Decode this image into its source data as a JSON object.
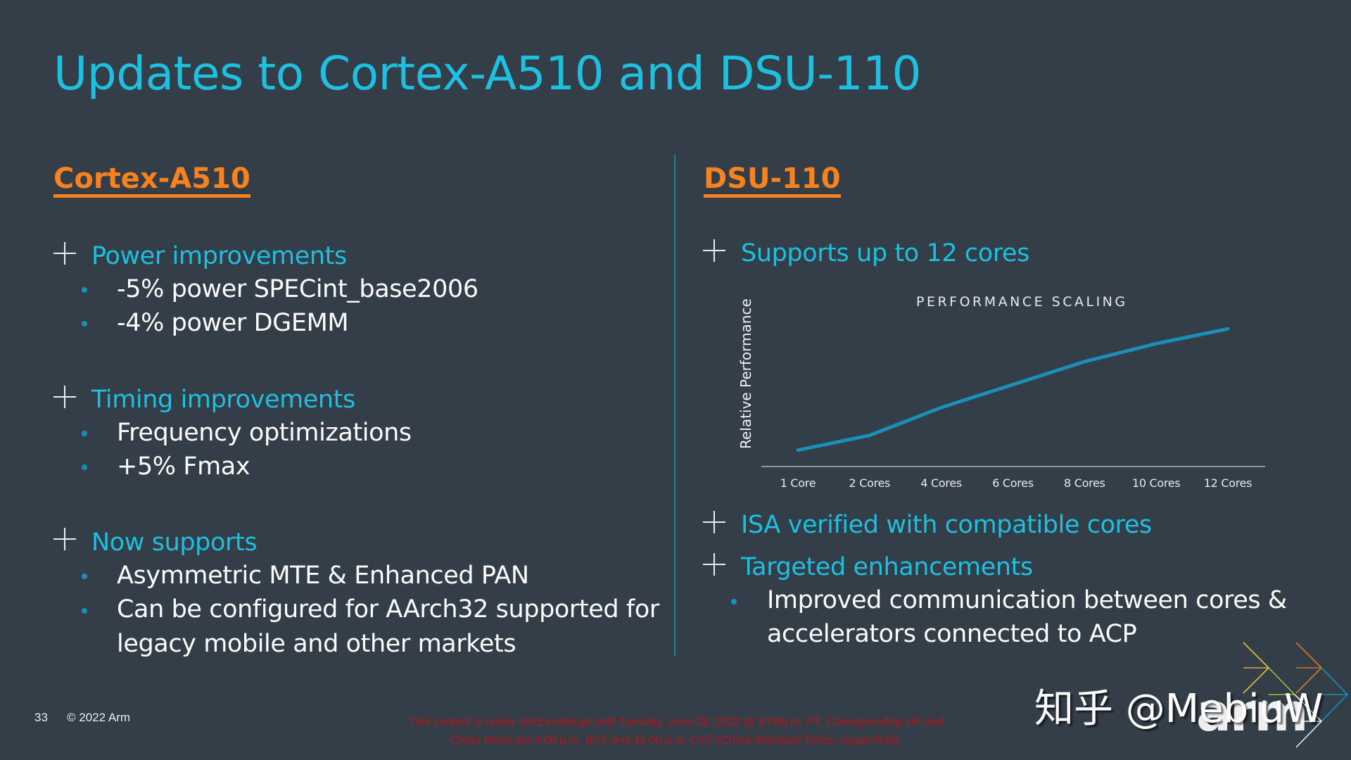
{
  "slide": {
    "title": "Updates to Cortex-A510 and DSU-110",
    "page_number": "33",
    "copyright": "© 2022 Arm",
    "embargo_lines": [
      "This content is under strict embargo until Tuesday, June 28, 2022 @ 8:00a.m. PT. Corresponding UK and",
      "China times are 4:00 p.m. BST and 11:00 p.m. CST (China Standard Time), respectively."
    ],
    "watermark": "知乎 @MebiuW",
    "logo_text": "arm",
    "colors": {
      "background": "#333e48",
      "title": "#1ebfdf",
      "heading_orange": "#f7821e",
      "accent_blue": "#1b8fb8",
      "embargo_red": "#b4151b"
    }
  },
  "left": {
    "heading": "Cortex-A510",
    "groups": [
      {
        "label": "Power improvements",
        "items": [
          "-5% power SPECint_base2006",
          "-4% power DGEMM"
        ]
      },
      {
        "label": "Timing improvements",
        "items": [
          "Frequency optimizations",
          "+5% Fmax"
        ]
      },
      {
        "label": "Now supports",
        "items": [
          "Asymmetric MTE & Enhanced PAN",
          "Can be configured for AArch32 supported for",
          "legacy mobile and other markets"
        ]
      }
    ]
  },
  "right": {
    "heading": "DSU-110",
    "groups": [
      {
        "label": "Supports up to 12 cores",
        "items": []
      },
      {
        "label": "ISA verified with compatible cores",
        "items": []
      },
      {
        "label": "Targeted enhancements",
        "items": [
          "Improved communication between cores &",
          "accelerators connected to ACP"
        ]
      }
    ]
  },
  "chart_data": {
    "type": "line",
    "title": "PERFORMANCE SCALING",
    "xlabel": "",
    "ylabel": "Relative Performance",
    "categories": [
      "1 Core",
      "2 Cores",
      "4 Cores",
      "6 Cores",
      "8 Cores",
      "10 Cores",
      "12 Cores"
    ],
    "series": [
      {
        "name": "Relative Performance",
        "color": "#1b8fb8",
        "values": [
          1.0,
          1.9,
          3.6,
          5.0,
          6.4,
          7.5,
          8.4
        ]
      }
    ],
    "ylim": [
      0,
      10
    ],
    "grid": false,
    "legend": "none",
    "y_tick_labels": "none"
  }
}
